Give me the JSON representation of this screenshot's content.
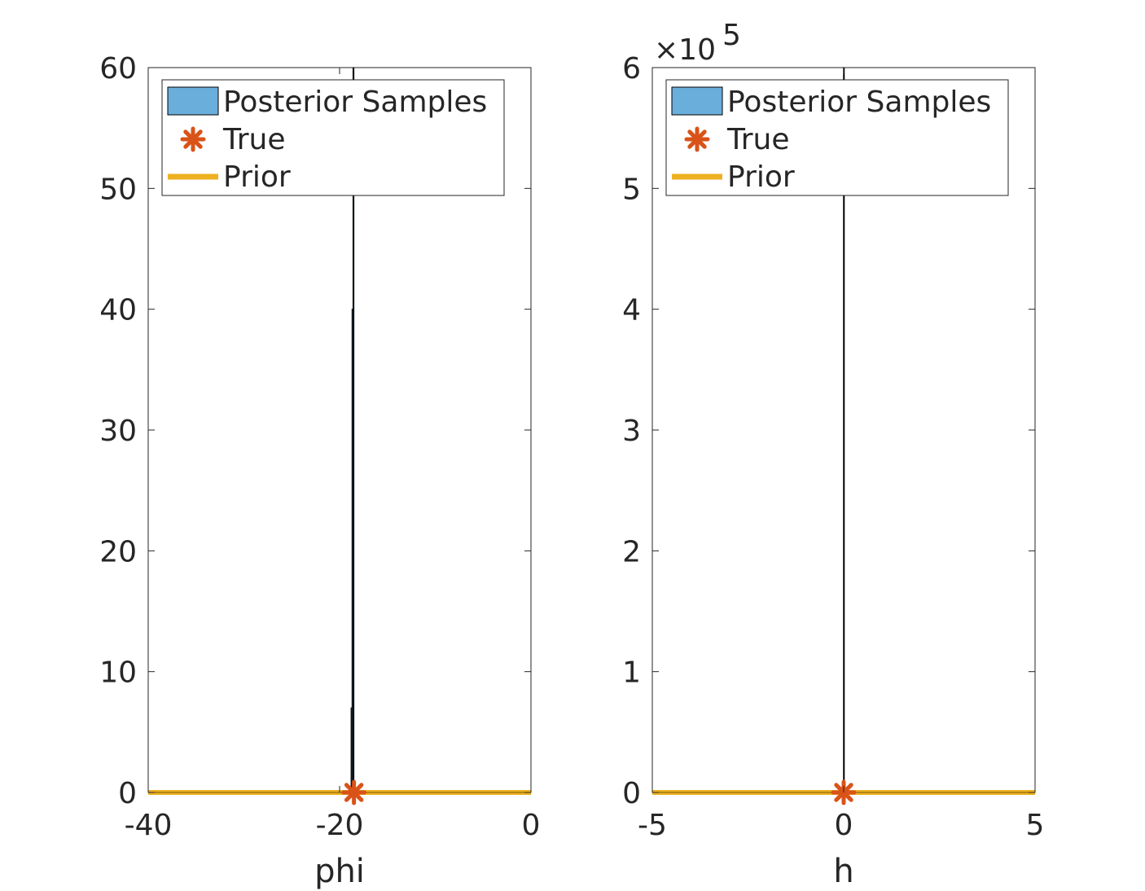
{
  "colors": {
    "posterior": "#6aaedb",
    "true_marker": "#d95319",
    "prior": "#edb120",
    "axis": "#262626",
    "histogram_edge": "#000000"
  },
  "chart_data": [
    {
      "type": "histogram",
      "xlabel": "phi",
      "ylabel": "",
      "xlim": [
        -40,
        0
      ],
      "ylim": [
        0,
        60
      ],
      "xticks": [
        -40,
        -20,
        0
      ],
      "xtick_labels": [
        "-40",
        "-20",
        "0"
      ],
      "yticks": [
        0,
        10,
        20,
        30,
        40,
        50,
        60
      ],
      "ytick_labels": [
        "0",
        "10",
        "20",
        "30",
        "40",
        "50",
        "60"
      ],
      "exponent_label": "",
      "grid": false,
      "legend_position": "top-right",
      "legend": [
        "Posterior Samples",
        "True",
        "Prior"
      ],
      "posterior_bins": [
        {
          "x0": -18.8,
          "x1": -18.7,
          "height": 7
        },
        {
          "x0": -18.7,
          "x1": -18.6,
          "height": 40
        },
        {
          "x0": -18.6,
          "x1": -18.5,
          "height": 60
        }
      ],
      "true_value": -18.5,
      "prior_density": 0
    },
    {
      "type": "histogram",
      "xlabel": "h",
      "ylabel": "",
      "xlim": [
        -5,
        5
      ],
      "ylim": [
        0,
        600000
      ],
      "xticks": [
        -5,
        0,
        5
      ],
      "xtick_labels": [
        "-5",
        "0",
        "5"
      ],
      "yticks": [
        0,
        100000,
        200000,
        300000,
        400000,
        500000,
        600000
      ],
      "ytick_labels": [
        "0",
        "1",
        "2",
        "3",
        "4",
        "5",
        "6"
      ],
      "exponent_label": "×10",
      "exponent_power": "5",
      "grid": false,
      "legend_position": "top-right",
      "legend": [
        "Posterior Samples",
        "True",
        "Prior"
      ],
      "posterior_bins": [
        {
          "x0": -0.005,
          "x1": 0.005,
          "height": 600000
        }
      ],
      "true_value": 0,
      "prior_density": 0
    }
  ]
}
